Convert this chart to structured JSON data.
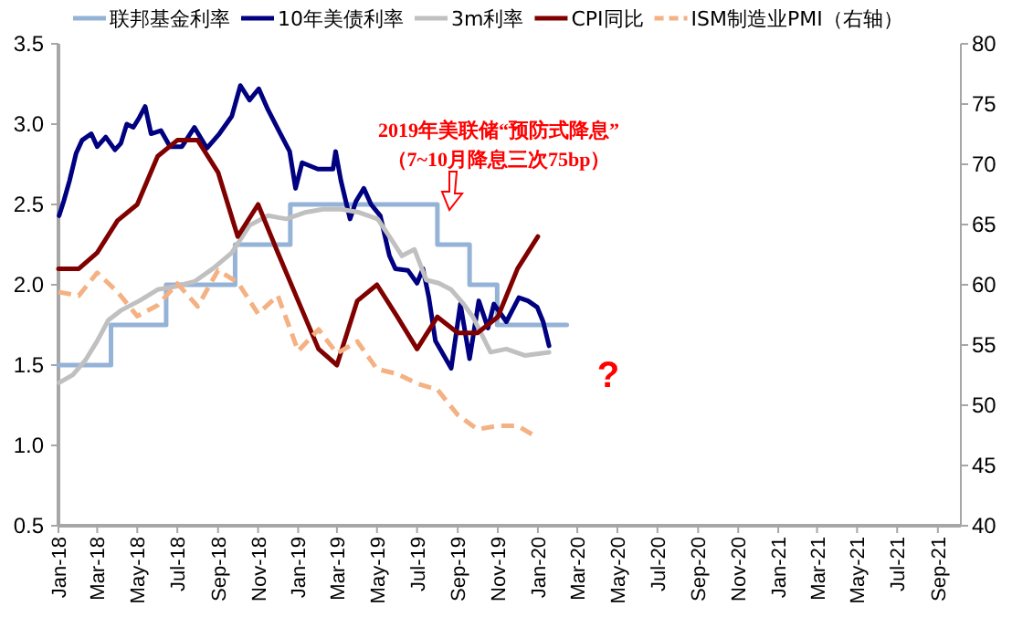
{
  "chart_data": {
    "type": "line",
    "legend": "top",
    "grid": false,
    "xlim": [
      "2018-01-01",
      "2021-10-06"
    ],
    "xticks": [
      {
        "value": "2018-01-01",
        "label": "Jan-18"
      },
      {
        "value": "2018-03-01",
        "label": "Mar-18"
      },
      {
        "value": "2018-05-01",
        "label": "May-18"
      },
      {
        "value": "2018-07-01",
        "label": "Jul-18"
      },
      {
        "value": "2018-09-01",
        "label": "Sep-18"
      },
      {
        "value": "2018-11-01",
        "label": "Nov-18"
      },
      {
        "value": "2019-01-01",
        "label": "Jan-19"
      },
      {
        "value": "2019-03-01",
        "label": "Mar-19"
      },
      {
        "value": "2019-05-01",
        "label": "May-19"
      },
      {
        "value": "2019-07-01",
        "label": "Jul-19"
      },
      {
        "value": "2019-09-01",
        "label": "Sep-19"
      },
      {
        "value": "2019-11-01",
        "label": "Nov-19"
      },
      {
        "value": "2020-01-01",
        "label": "Jan-20"
      },
      {
        "value": "2020-03-01",
        "label": "Mar-20"
      },
      {
        "value": "2020-05-01",
        "label": "May-20"
      },
      {
        "value": "2020-07-01",
        "label": "Jul-20"
      },
      {
        "value": "2020-09-01",
        "label": "Sep-20"
      },
      {
        "value": "2020-11-01",
        "label": "Nov-20"
      },
      {
        "value": "2021-01-01",
        "label": "Jan-21"
      },
      {
        "value": "2021-03-01",
        "label": "Mar-21"
      },
      {
        "value": "2021-05-01",
        "label": "May-21"
      },
      {
        "value": "2021-07-01",
        "label": "Jul-21"
      },
      {
        "value": "2021-09-01",
        "label": "Sep-21"
      }
    ],
    "ylim": [
      0.5,
      3.5
    ],
    "yticks": [
      {
        "value": 0.5,
        "label": "0.5"
      },
      {
        "value": 1,
        "label": "1.0"
      },
      {
        "value": 1.5,
        "label": "1.5"
      },
      {
        "value": 2,
        "label": "2.0"
      },
      {
        "value": 2.5,
        "label": "2.5"
      },
      {
        "value": 3,
        "label": "3.0"
      },
      {
        "value": 3.5,
        "label": "3.5"
      }
    ],
    "y2lim": [
      40,
      80
    ],
    "y2ticks": [
      40,
      45,
      50,
      55,
      60,
      65,
      70,
      75,
      80
    ],
    "annotations": [
      "2019年美联储“预防式降息”",
      "（7~10月降息三次75bp）",
      "?"
    ],
    "series": [
      {
        "name": "联邦基金利率",
        "type": "step",
        "color": "#95b3d7",
        "x": [
          "2018-01-01",
          "2018-03-22",
          "2018-06-14",
          "2018-09-27",
          "2018-12-20",
          "2019-08-01",
          "2019-09-19",
          "2019-10-31",
          "2020-02-14"
        ],
        "values": [
          1.5,
          1.75,
          2.0,
          2.25,
          2.5,
          2.25,
          2.0,
          1.75,
          1.75
        ]
      },
      {
        "name": "10年美债利率",
        "color": "#000080",
        "x": [
          "2018-01-02",
          "2018-01-09",
          "2018-01-18",
          "2018-01-28",
          "2018-02-06",
          "2018-02-20",
          "2018-03-01",
          "2018-03-14",
          "2018-03-28",
          "2018-04-06",
          "2018-04-15",
          "2018-04-25",
          "2018-05-04",
          "2018-05-13",
          "2018-05-22",
          "2018-06-06",
          "2018-06-20",
          "2018-07-08",
          "2018-07-27",
          "2018-08-15",
          "2018-09-03",
          "2018-09-22",
          "2018-10-05",
          "2018-10-19",
          "2018-11-02",
          "2018-11-16",
          "2018-12-05",
          "2018-12-19",
          "2018-12-28",
          "2019-01-07",
          "2019-01-31",
          "2019-02-23",
          "2019-02-27",
          "2019-03-07",
          "2019-03-21",
          "2019-03-30",
          "2019-04-11",
          "2019-04-22",
          "2019-05-06",
          "2019-05-20",
          "2019-05-29",
          "2019-06-17",
          "2019-07-01",
          "2019-07-10",
          "2019-07-19",
          "2019-07-29",
          "2019-08-08",
          "2019-08-22",
          "2019-09-05",
          "2019-09-19",
          "2019-10-03",
          "2019-10-17",
          "2019-10-26",
          "2019-11-14",
          "2019-12-03",
          "2019-12-17",
          "2019-12-31",
          "2020-01-09",
          "2020-01-18"
        ],
        "values": [
          2.43,
          2.52,
          2.65,
          2.82,
          2.9,
          2.94,
          2.86,
          2.92,
          2.84,
          2.88,
          3.0,
          2.98,
          3.04,
          3.11,
          2.94,
          2.96,
          2.86,
          2.86,
          2.98,
          2.85,
          2.94,
          3.05,
          3.24,
          3.15,
          3.22,
          3.09,
          2.94,
          2.83,
          2.6,
          2.76,
          2.72,
          2.72,
          2.83,
          2.65,
          2.41,
          2.52,
          2.6,
          2.5,
          2.43,
          2.18,
          2.1,
          2.09,
          2.01,
          2.1,
          1.92,
          1.65,
          1.58,
          1.48,
          1.88,
          1.54,
          1.9,
          1.73,
          1.88,
          1.77,
          1.92,
          1.9,
          1.86,
          1.77,
          1.62
        ]
      },
      {
        "name": "3m利率",
        "color": "#c0c0c0",
        "x": [
          "2018-01-02",
          "2018-01-23",
          "2018-02-11",
          "2018-03-01",
          "2018-03-18",
          "2018-04-06",
          "2018-05-04",
          "2018-06-01",
          "2018-06-29",
          "2018-07-27",
          "2018-08-24",
          "2018-09-22",
          "2018-10-19",
          "2018-11-16",
          "2018-12-14",
          "2019-01-11",
          "2019-02-08",
          "2019-03-07",
          "2019-04-04",
          "2019-05-02",
          "2019-05-20",
          "2019-06-08",
          "2019-06-27",
          "2019-07-15",
          "2019-08-03",
          "2019-08-22",
          "2019-09-10",
          "2019-09-24",
          "2019-10-21",
          "2019-11-14",
          "2019-12-12",
          "2020-01-18"
        ],
        "values": [
          1.39,
          1.44,
          1.53,
          1.65,
          1.78,
          1.84,
          1.9,
          1.97,
          1.99,
          2.02,
          2.1,
          2.2,
          2.37,
          2.43,
          2.41,
          2.45,
          2.47,
          2.47,
          2.45,
          2.41,
          2.3,
          2.18,
          2.22,
          2.03,
          2.01,
          1.97,
          1.88,
          1.8,
          1.58,
          1.6,
          1.56,
          1.58
        ]
      },
      {
        "name": "CPI同比",
        "color": "#800000",
        "x": [
          "2018-01-01",
          "2018-02-01",
          "2018-03-01",
          "2018-04-01",
          "2018-05-01",
          "2018-06-01",
          "2018-07-01",
          "2018-08-01",
          "2018-09-01",
          "2018-10-01",
          "2018-11-01",
          "2018-12-01",
          "2019-01-01",
          "2019-02-01",
          "2019-03-01",
          "2019-04-01",
          "2019-05-01",
          "2019-06-01",
          "2019-07-01",
          "2019-08-01",
          "2019-09-01",
          "2019-10-01",
          "2019-11-01",
          "2019-12-01",
          "2020-01-01"
        ],
        "values": [
          2.1,
          2.1,
          2.2,
          2.4,
          2.5,
          2.8,
          2.9,
          2.9,
          2.7,
          2.3,
          2.5,
          2.2,
          1.9,
          1.6,
          1.5,
          1.9,
          2.0,
          1.8,
          1.6,
          1.8,
          1.7,
          1.7,
          1.8,
          2.1,
          2.3
        ]
      },
      {
        "name": "ISM制造业PMI（右轴）",
        "color": "#f4b183",
        "axis": "y2",
        "line_style": "dashed",
        "x": [
          "2018-01-01",
          "2018-02-01",
          "2018-03-01",
          "2018-04-01",
          "2018-05-01",
          "2018-06-01",
          "2018-07-01",
          "2018-08-01",
          "2018-09-01",
          "2018-10-01",
          "2018-11-01",
          "2018-12-01",
          "2019-01-01",
          "2019-02-01",
          "2019-03-01",
          "2019-04-01",
          "2019-05-01",
          "2019-06-01",
          "2019-07-01",
          "2019-08-01",
          "2019-09-01",
          "2019-10-01",
          "2019-11-01",
          "2019-12-01",
          "2020-01-01"
        ],
        "values": [
          59.4,
          59.1,
          61,
          59.4,
          57.4,
          58.3,
          60.1,
          58.2,
          61.2,
          60.2,
          57.6,
          59.1,
          54.5,
          56.3,
          54.3,
          55.3,
          53,
          52.6,
          51.8,
          51.3,
          49.2,
          48,
          48.3,
          48.3,
          47.3
        ]
      }
    ]
  }
}
